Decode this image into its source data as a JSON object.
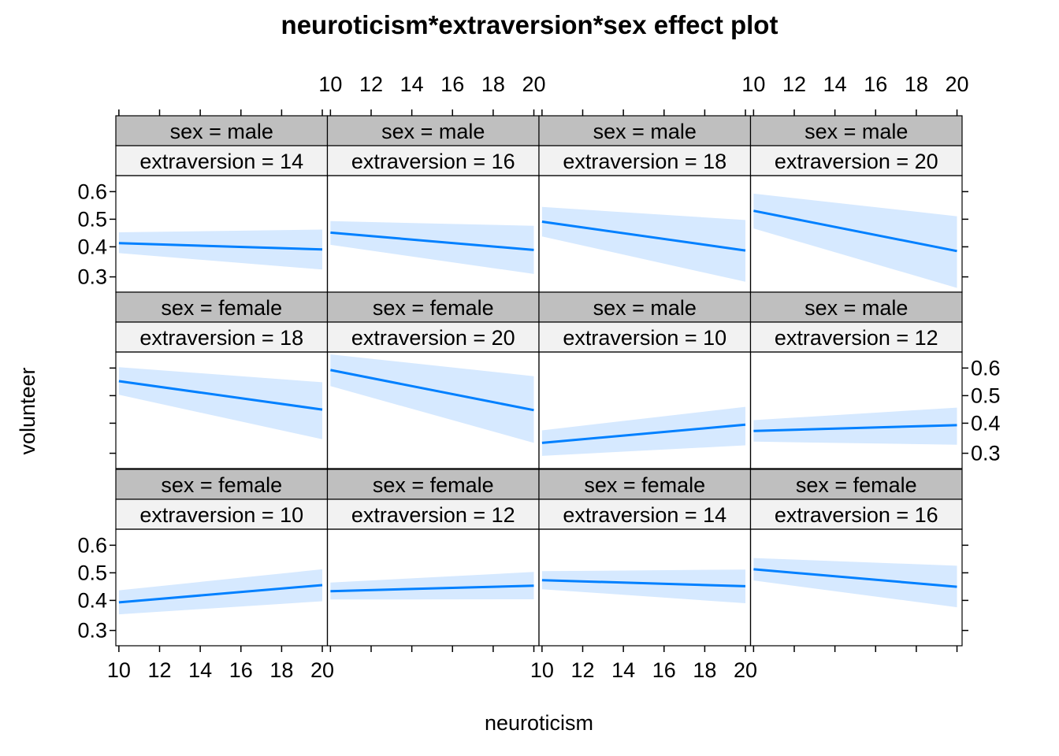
{
  "chart_data": {
    "type": "line",
    "title": "neuroticism*extraversion*sex effect plot",
    "xlabel": "neuroticism",
    "ylabel": "volunteer",
    "x_ticks": [
      10,
      12,
      14,
      16,
      18,
      20
    ],
    "y_ticks": [
      "0.3",
      "0.4",
      "0.5",
      "0.6"
    ],
    "xlim": [
      9.85,
      20.25
    ],
    "ylim": [
      0.255,
      0.655
    ],
    "y_scale": "logit",
    "grid": false,
    "band": "confidence interval",
    "colors": {
      "line": "#0080ff",
      "band": "#d6e9ff",
      "strip_factor": "#bfbfbf",
      "strip_level": "#f2f2f2"
    },
    "panels": [
      {
        "sex_label": "sex = male",
        "extraversion_label": "extraversion = 14",
        "x": [
          10,
          20
        ],
        "fit": [
          0.413,
          0.391
        ],
        "lower": [
          0.378,
          0.323
        ],
        "upper": [
          0.452,
          0.462
        ]
      },
      {
        "sex_label": "sex = male",
        "extraversion_label": "extraversion = 16",
        "x": [
          10,
          20
        ],
        "fit": [
          0.451,
          0.389
        ],
        "lower": [
          0.407,
          0.309
        ],
        "upper": [
          0.493,
          0.476
        ]
      },
      {
        "sex_label": "sex = male",
        "extraversion_label": "extraversion = 18",
        "x": [
          10,
          20
        ],
        "fit": [
          0.491,
          0.387
        ],
        "lower": [
          0.437,
          0.285
        ],
        "upper": [
          0.545,
          0.497
        ]
      },
      {
        "sex_label": "sex = male",
        "extraversion_label": "extraversion = 20",
        "x": [
          10,
          20
        ],
        "fit": [
          0.531,
          0.385
        ],
        "lower": [
          0.466,
          0.267
        ],
        "upper": [
          0.593,
          0.511
        ]
      },
      {
        "sex_label": "sex = female",
        "extraversion_label": "extraversion = 18",
        "x": [
          10,
          20
        ],
        "fit": [
          0.553,
          0.449
        ],
        "lower": [
          0.503,
          0.345
        ],
        "upper": [
          0.603,
          0.549
        ]
      },
      {
        "sex_label": "sex = female",
        "extraversion_label": "extraversion = 20",
        "x": [
          10,
          20
        ],
        "fit": [
          0.593,
          0.447
        ],
        "lower": [
          0.535,
          0.333
        ],
        "upper": [
          0.647,
          0.571
        ]
      },
      {
        "sex_label": "sex = male",
        "extraversion_label": "extraversion = 10",
        "x": [
          10,
          20
        ],
        "fit": [
          0.333,
          0.395
        ],
        "lower": [
          0.292,
          0.325
        ],
        "upper": [
          0.375,
          0.459
        ]
      },
      {
        "sex_label": "sex = male",
        "extraversion_label": "extraversion = 12",
        "x": [
          10,
          20
        ],
        "fit": [
          0.373,
          0.393
        ],
        "lower": [
          0.337,
          0.327
        ],
        "upper": [
          0.411,
          0.456
        ]
      },
      {
        "sex_label": "sex = female",
        "extraversion_label": "extraversion = 10",
        "x": [
          10,
          20
        ],
        "fit": [
          0.393,
          0.455
        ],
        "lower": [
          0.352,
          0.397
        ],
        "upper": [
          0.436,
          0.513
        ]
      },
      {
        "sex_label": "sex = female",
        "extraversion_label": "extraversion = 12",
        "x": [
          10,
          20
        ],
        "fit": [
          0.433,
          0.453
        ],
        "lower": [
          0.403,
          0.404
        ],
        "upper": [
          0.464,
          0.503
        ]
      },
      {
        "sex_label": "sex = female",
        "extraversion_label": "extraversion = 14",
        "x": [
          10,
          20
        ],
        "fit": [
          0.473,
          0.451
        ],
        "lower": [
          0.44,
          0.39
        ],
        "upper": [
          0.506,
          0.512
        ]
      },
      {
        "sex_label": "sex = female",
        "extraversion_label": "extraversion = 16",
        "x": [
          10,
          20
        ],
        "fit": [
          0.513,
          0.449
        ],
        "lower": [
          0.472,
          0.376
        ],
        "upper": [
          0.554,
          0.526
        ]
      }
    ]
  }
}
